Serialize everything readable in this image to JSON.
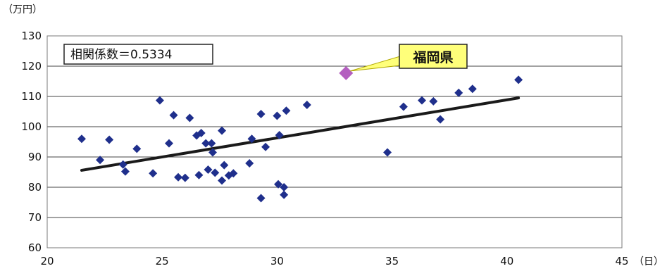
{
  "chart_data": {
    "type": "scatter",
    "title": "",
    "xlabel": "",
    "ylabel": "",
    "x_unit": "（日）",
    "y_unit": "（万円）",
    "xlim": [
      20,
      45
    ],
    "ylim": [
      60,
      130
    ],
    "x_ticks": [
      "20",
      "25",
      "30",
      "35",
      "40",
      "45"
    ],
    "y_ticks": [
      "60",
      "70",
      "80",
      "90",
      "100",
      "110",
      "120",
      "130"
    ],
    "grid": "horizontal",
    "annotation": "相関係数＝0.5334",
    "series": [
      {
        "name": "",
        "color": "#1f2f8c",
        "marker": "diamond",
        "points": [
          [
            21.5,
            96
          ],
          [
            22.3,
            89
          ],
          [
            22.7,
            95.7
          ],
          [
            23.3,
            87.5
          ],
          [
            23.4,
            85.2
          ],
          [
            23.9,
            92.7
          ],
          [
            24.6,
            84.6
          ],
          [
            24.9,
            108.7
          ],
          [
            25.3,
            94.5
          ],
          [
            25.5,
            103.8
          ],
          [
            25.7,
            83.3
          ],
          [
            26.0,
            83.1
          ],
          [
            26.2,
            102.9
          ],
          [
            26.5,
            97.1
          ],
          [
            26.6,
            84
          ],
          [
            26.7,
            97.9
          ],
          [
            26.9,
            94.5
          ],
          [
            27.0,
            85.8
          ],
          [
            27.15,
            94.5
          ],
          [
            27.2,
            91.5
          ],
          [
            27.3,
            84.8
          ],
          [
            27.6,
            82.2
          ],
          [
            27.6,
            98.7
          ],
          [
            27.7,
            87.3
          ],
          [
            27.9,
            83.9
          ],
          [
            28.1,
            84.6
          ],
          [
            28.8,
            87.9
          ],
          [
            28.9,
            96
          ],
          [
            29.3,
            76.4
          ],
          [
            29.3,
            104.2
          ],
          [
            29.5,
            93.3
          ],
          [
            30.0,
            103.6
          ],
          [
            30.05,
            81
          ],
          [
            30.1,
            97.2
          ],
          [
            30.3,
            80
          ],
          [
            30.3,
            77.5
          ],
          [
            30.4,
            105.3
          ],
          [
            31.3,
            107.2
          ],
          [
            34.8,
            91.5
          ],
          [
            35.5,
            106.6
          ],
          [
            36.3,
            108.7
          ],
          [
            36.8,
            108.4
          ],
          [
            37.1,
            102.4
          ],
          [
            37.9,
            111.2
          ],
          [
            38.5,
            112.5
          ],
          [
            40.5,
            115.5
          ]
        ]
      },
      {
        "name": "福岡県",
        "color": "#b45fc0",
        "marker": "diamond",
        "points": [
          [
            33.0,
            117.7
          ]
        ]
      }
    ],
    "trendline": {
      "from": [
        21.5,
        85.6
      ],
      "to": [
        40.5,
        109.5
      ],
      "color": "#1a1a1a"
    },
    "callout": {
      "text": "福岡県",
      "fill": "#ffff7a",
      "target_series": 1
    }
  }
}
